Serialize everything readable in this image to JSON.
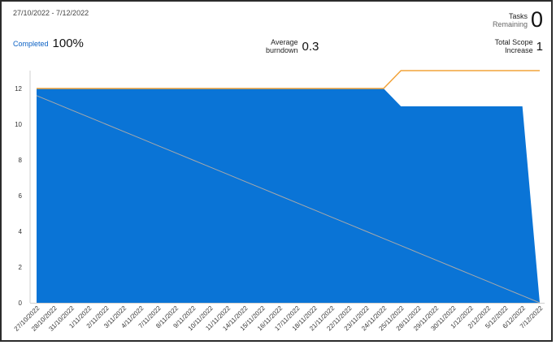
{
  "header": {
    "date_range": "27/10/2022 - 7/12/2022",
    "completed": {
      "label": "Completed",
      "value": "100%"
    },
    "average_burndown": {
      "label_line1": "Average",
      "label_line2": "burndown",
      "value": "0.3"
    },
    "tasks_remaining": {
      "label_line1": "Tasks",
      "label_line2": "Remaining",
      "value": "0"
    },
    "total_scope_increase": {
      "label_line1": "Total Scope",
      "label_line2": "Increase",
      "value": "1"
    }
  },
  "colors": {
    "remaining": "#0a74d6",
    "scope": "#f2a33a",
    "ideal": "#a9a9a9"
  },
  "chart_data": {
    "type": "area",
    "ylim": [
      0,
      13
    ],
    "yticks": [
      0,
      2,
      4,
      6,
      8,
      10,
      12
    ],
    "grid": false,
    "categories": [
      "27/10/2022",
      "28/10/2022",
      "31/10/2022",
      "1/11/2022",
      "2/11/2022",
      "3/11/2022",
      "4/11/2022",
      "7/11/2022",
      "8/11/2022",
      "9/11/2022",
      "10/11/2022",
      "11/11/2022",
      "14/11/2022",
      "15/11/2022",
      "16/11/2022",
      "17/11/2022",
      "18/11/2022",
      "21/11/2022",
      "22/11/2022",
      "23/11/2022",
      "24/11/2022",
      "25/11/2022",
      "28/11/2022",
      "29/11/2022",
      "30/11/2022",
      "1/12/2022",
      "2/12/2022",
      "5/12/2022",
      "6/12/2022",
      "7/12/2022"
    ],
    "series": [
      {
        "role": "remaining",
        "values": [
          12,
          12,
          12,
          12,
          12,
          12,
          12,
          12,
          12,
          12,
          12,
          12,
          12,
          12,
          12,
          12,
          12,
          12,
          12,
          12,
          12,
          11,
          11,
          11,
          11,
          11,
          11,
          11,
          11,
          0
        ]
      },
      {
        "role": "scope",
        "values": [
          12,
          12,
          12,
          12,
          12,
          12,
          12,
          12,
          12,
          12,
          12,
          12,
          12,
          12,
          12,
          12,
          12,
          12,
          12,
          12,
          12,
          13,
          13,
          13,
          13,
          13,
          13,
          13,
          13,
          13
        ]
      },
      {
        "role": "ideal",
        "values": [
          11.6,
          11.2,
          10.8,
          10.4,
          10.0,
          9.6,
          9.2,
          8.8,
          8.4,
          8.0,
          7.6,
          7.2,
          6.8,
          6.4,
          6.0,
          5.6,
          5.2,
          4.8,
          4.4,
          4.0,
          3.6,
          3.2,
          2.8,
          2.4,
          2.0,
          1.6,
          1.2,
          0.8,
          0.4,
          0
        ]
      }
    ]
  }
}
